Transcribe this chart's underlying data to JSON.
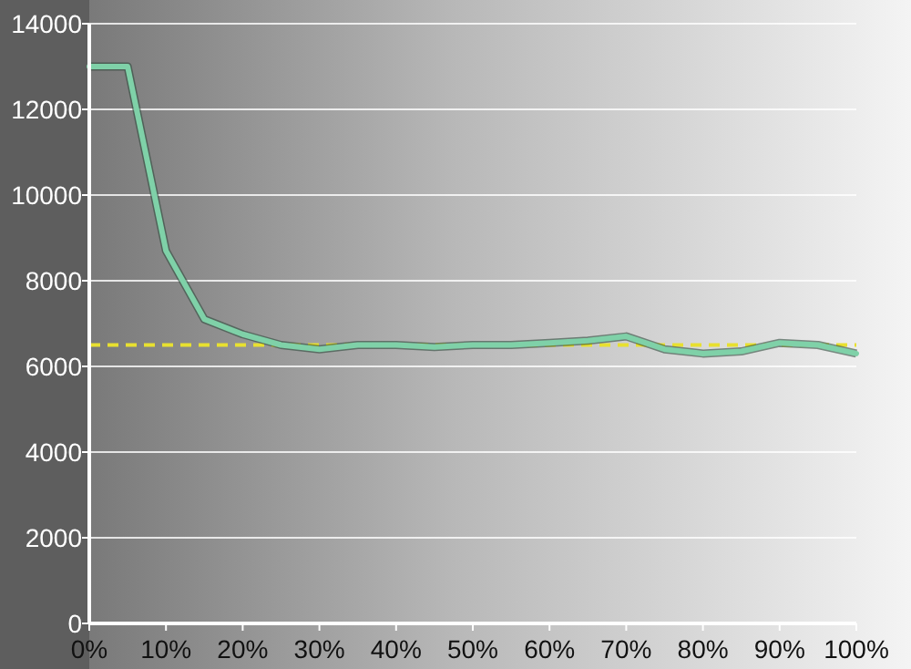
{
  "chart_data": {
    "type": "line",
    "x": [
      0,
      5,
      10,
      15,
      20,
      25,
      30,
      35,
      40,
      45,
      50,
      55,
      60,
      65,
      70,
      75,
      80,
      85,
      90,
      95,
      100
    ],
    "series": [
      {
        "color": "#7fd1a8",
        "values": [
          13000,
          13000,
          8700,
          7100,
          6750,
          6500,
          6400,
          6500,
          6500,
          6450,
          6500,
          6500,
          6550,
          6600,
          6700,
          6400,
          6300,
          6350,
          6550,
          6500,
          6300
        ]
      }
    ],
    "xlim": [
      0,
      100
    ],
    "xticks": [
      {
        "value": 0,
        "label": "0%"
      },
      {
        "value": 10,
        "label": "10%"
      },
      {
        "value": 20,
        "label": "20%"
      },
      {
        "value": 30,
        "label": "30%"
      },
      {
        "value": 40,
        "label": "40%"
      },
      {
        "value": 50,
        "label": "50%"
      },
      {
        "value": 60,
        "label": "60%"
      },
      {
        "value": 70,
        "label": "70%"
      },
      {
        "value": 80,
        "label": "80%"
      },
      {
        "value": 90,
        "label": "90%"
      },
      {
        "value": 100,
        "label": "100%"
      }
    ],
    "ylim": [
      0,
      14000
    ],
    "yticks": [
      0,
      2000,
      4000,
      6000,
      8000,
      10000,
      12000,
      14000
    ],
    "ref_lines": [
      {
        "axis": "y",
        "value": 6500,
        "color": "#e8e030",
        "line_style": "dashed"
      }
    ],
    "grid": "y",
    "marker": "none",
    "line_style": "solid"
  }
}
